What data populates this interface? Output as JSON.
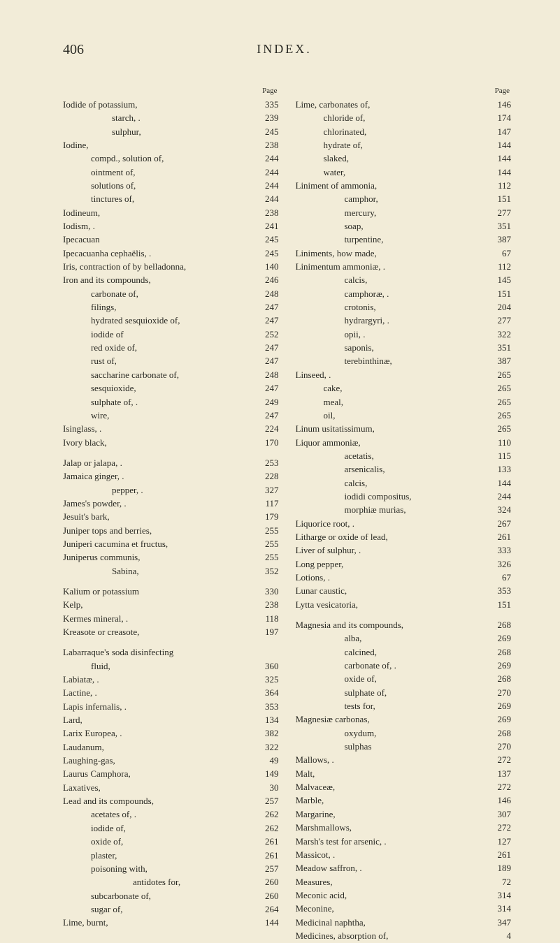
{
  "header": {
    "page_number": "406",
    "title": "INDEX."
  },
  "column_heading": "Page",
  "left": [
    {
      "text": "Iodide of potassium,",
      "page": "335",
      "indent": 0
    },
    {
      "text": "starch, .",
      "page": "239",
      "indent": 2
    },
    {
      "text": "sulphur,",
      "page": "245",
      "indent": 2
    },
    {
      "text": "Iodine,",
      "page": "238",
      "indent": 0
    },
    {
      "text": "compd., solution of,",
      "page": "244",
      "indent": 1
    },
    {
      "text": "ointment of,",
      "page": "244",
      "indent": 1
    },
    {
      "text": "solutions of,",
      "page": "244",
      "indent": 1
    },
    {
      "text": "tinctures of,",
      "page": "244",
      "indent": 1
    },
    {
      "text": "Iodineum,",
      "page": "238",
      "indent": 0
    },
    {
      "text": "Iodism, .",
      "page": "241",
      "indent": 0
    },
    {
      "text": "Ipecacuan",
      "page": "245",
      "indent": 0
    },
    {
      "text": "Ipecacuanha cephaëlis, .",
      "page": "245",
      "indent": 0
    },
    {
      "text": "Iris, contraction of by belladonna,",
      "page": "140",
      "indent": 0
    },
    {
      "text": "Iron and its compounds,",
      "page": "246",
      "indent": 0
    },
    {
      "text": "carbonate of,",
      "page": "248",
      "indent": 1
    },
    {
      "text": "filings,",
      "page": "247",
      "indent": 1
    },
    {
      "text": "hydrated sesquioxide of,",
      "page": "247",
      "indent": 1
    },
    {
      "text": "iodide of",
      "page": "252",
      "indent": 1
    },
    {
      "text": "red oxide of,",
      "page": "247",
      "indent": 1
    },
    {
      "text": "rust of,",
      "page": "247",
      "indent": 1
    },
    {
      "text": "saccharine carbonate of,",
      "page": "248",
      "indent": 1
    },
    {
      "text": "sesquioxide,",
      "page": "247",
      "indent": 1
    },
    {
      "text": "sulphate of, .",
      "page": "249",
      "indent": 1
    },
    {
      "text": "wire,",
      "page": "247",
      "indent": 1
    },
    {
      "text": "Isinglass, .",
      "page": "224",
      "indent": 0
    },
    {
      "text": "Ivory black,",
      "page": "170",
      "indent": 0
    },
    {
      "text": "",
      "page": "",
      "indent": 0,
      "gap": true
    },
    {
      "text": "Jalap or jalapa, .",
      "page": "253",
      "indent": 0
    },
    {
      "text": "Jamaica ginger, .",
      "page": "228",
      "indent": 0
    },
    {
      "text": "pepper, .",
      "page": "327",
      "indent": 2
    },
    {
      "text": "James's powder, .",
      "page": "117",
      "indent": 0
    },
    {
      "text": "Jesuit's bark,",
      "page": "179",
      "indent": 0
    },
    {
      "text": "Juniper tops and berries,",
      "page": "255",
      "indent": 0
    },
    {
      "text": "Juniperi cacumina et fructus,",
      "page": "255",
      "indent": 0
    },
    {
      "text": "Juniperus communis,",
      "page": "255",
      "indent": 0
    },
    {
      "text": "Sabina,",
      "page": "352",
      "indent": 2
    },
    {
      "text": "",
      "page": "",
      "indent": 0,
      "gap": true
    },
    {
      "text": "Kalium or potassium",
      "page": "330",
      "indent": 0
    },
    {
      "text": "Kelp,",
      "page": "238",
      "indent": 0
    },
    {
      "text": "Kermes mineral, .",
      "page": "118",
      "indent": 0
    },
    {
      "text": "Kreasote or creasote,",
      "page": "197",
      "indent": 0
    },
    {
      "text": "",
      "page": "",
      "indent": 0,
      "gap": true
    },
    {
      "text": "Labarraque's soda disinfecting",
      "page": "",
      "indent": 0
    },
    {
      "text": "fluid,",
      "page": "360",
      "indent": 1
    },
    {
      "text": "Labiatæ, .",
      "page": "325",
      "indent": 0
    },
    {
      "text": "Lactine, .",
      "page": "364",
      "indent": 0
    },
    {
      "text": "Lapis infernalis, .",
      "page": "353",
      "indent": 0
    },
    {
      "text": "Lard,",
      "page": "134",
      "indent": 0
    },
    {
      "text": "Larix Europea, .",
      "page": "382",
      "indent": 0
    },
    {
      "text": "Laudanum,",
      "page": "322",
      "indent": 0
    },
    {
      "text": "Laughing-gas,",
      "page": "49",
      "indent": 0
    },
    {
      "text": "Laurus Camphora,",
      "page": "149",
      "indent": 0
    },
    {
      "text": "Laxatives,",
      "page": "30",
      "indent": 0
    },
    {
      "text": "Lead and its compounds,",
      "page": "257",
      "indent": 0
    },
    {
      "text": "acetates of, .",
      "page": "262",
      "indent": 1
    },
    {
      "text": "iodide of,",
      "page": "262",
      "indent": 1
    },
    {
      "text": "oxide of,",
      "page": "261",
      "indent": 1
    },
    {
      "text": "plaster,",
      "page": "261",
      "indent": 1
    },
    {
      "text": "poisoning with,",
      "page": "257",
      "indent": 1
    },
    {
      "text": "antidotes for,",
      "page": "260",
      "indent": 3
    },
    {
      "text": "subcarbonate of,",
      "page": "260",
      "indent": 1
    },
    {
      "text": "sugar of,",
      "page": "264",
      "indent": 1
    },
    {
      "text": "Lime, burnt,",
      "page": "144",
      "indent": 0
    }
  ],
  "right": [
    {
      "text": "Lime, carbonates of,",
      "page": "146",
      "indent": 0
    },
    {
      "text": "chloride of,",
      "page": "174",
      "indent": 1
    },
    {
      "text": "chlorinated,",
      "page": "147",
      "indent": 1
    },
    {
      "text": "hydrate of,",
      "page": "144",
      "indent": 1
    },
    {
      "text": "slaked,",
      "page": "144",
      "indent": 1
    },
    {
      "text": "water,",
      "page": "144",
      "indent": 1
    },
    {
      "text": "Liniment of ammonia,",
      "page": "112",
      "indent": 0
    },
    {
      "text": "camphor,",
      "page": "151",
      "indent": 2
    },
    {
      "text": "mercury,",
      "page": "277",
      "indent": 2
    },
    {
      "text": "soap,",
      "page": "351",
      "indent": 2
    },
    {
      "text": "turpentine,",
      "page": "387",
      "indent": 2
    },
    {
      "text": "Liniments, how made,",
      "page": "67",
      "indent": 0
    },
    {
      "text": "Linimentum ammoniæ, .",
      "page": "112",
      "indent": 0
    },
    {
      "text": "calcis,",
      "page": "145",
      "indent": 2
    },
    {
      "text": "camphoræ, .",
      "page": "151",
      "indent": 2
    },
    {
      "text": "crotonis,",
      "page": "204",
      "indent": 2
    },
    {
      "text": "hydrargyri, .",
      "page": "277",
      "indent": 2
    },
    {
      "text": "opii, .",
      "page": "322",
      "indent": 2
    },
    {
      "text": "saponis,",
      "page": "351",
      "indent": 2
    },
    {
      "text": "terebinthinæ,",
      "page": "387",
      "indent": 2
    },
    {
      "text": "Linseed, .",
      "page": "265",
      "indent": 0
    },
    {
      "text": "cake,",
      "page": "265",
      "indent": 1
    },
    {
      "text": "meal,",
      "page": "265",
      "indent": 1
    },
    {
      "text": "oil,",
      "page": "265",
      "indent": 1
    },
    {
      "text": "Linum usitatissimum,",
      "page": "265",
      "indent": 0
    },
    {
      "text": "Liquor ammoniæ,",
      "page": "110",
      "indent": 0
    },
    {
      "text": "acetatis,",
      "page": "115",
      "indent": 2
    },
    {
      "text": "arsenicalis,",
      "page": "133",
      "indent": 2
    },
    {
      "text": "calcis,",
      "page": "144",
      "indent": 2
    },
    {
      "text": "iodidi compositus,",
      "page": "244",
      "indent": 2
    },
    {
      "text": "morphiæ murias,",
      "page": "324",
      "indent": 2
    },
    {
      "text": "Liquorice root, .",
      "page": "267",
      "indent": 0
    },
    {
      "text": "Litharge or oxide of lead,",
      "page": "261",
      "indent": 0
    },
    {
      "text": "Liver of sulphur, .",
      "page": "333",
      "indent": 0
    },
    {
      "text": "Long pepper,",
      "page": "326",
      "indent": 0
    },
    {
      "text": "Lotions, .",
      "page": "67",
      "indent": 0
    },
    {
      "text": "Lunar caustic,",
      "page": "353",
      "indent": 0
    },
    {
      "text": "Lytta vesicatoria,",
      "page": "151",
      "indent": 0
    },
    {
      "text": "",
      "page": "",
      "indent": 0,
      "gap": true
    },
    {
      "text": "Magnesia and its compounds,",
      "page": "268",
      "indent": 0
    },
    {
      "text": "alba,",
      "page": "269",
      "indent": 2
    },
    {
      "text": "calcined,",
      "page": "268",
      "indent": 2
    },
    {
      "text": "carbonate of, .",
      "page": "269",
      "indent": 2
    },
    {
      "text": "oxide of,",
      "page": "268",
      "indent": 2
    },
    {
      "text": "sulphate of,",
      "page": "270",
      "indent": 2
    },
    {
      "text": "tests for,",
      "page": "269",
      "indent": 2
    },
    {
      "text": "Magnesiæ carbonas,",
      "page": "269",
      "indent": 0
    },
    {
      "text": "oxydum,",
      "page": "268",
      "indent": 2
    },
    {
      "text": "sulphas",
      "page": "270",
      "indent": 2
    },
    {
      "text": "Mallows, .",
      "page": "272",
      "indent": 0
    },
    {
      "text": "Malt,",
      "page": "137",
      "indent": 0
    },
    {
      "text": "Malvaceæ,",
      "page": "272",
      "indent": 0
    },
    {
      "text": "Marble,",
      "page": "146",
      "indent": 0
    },
    {
      "text": "Margarine,",
      "page": "307",
      "indent": 0
    },
    {
      "text": "Marshmallows,",
      "page": "272",
      "indent": 0
    },
    {
      "text": "Marsh's test for arsenic, .",
      "page": "127",
      "indent": 0
    },
    {
      "text": "Massicot, .",
      "page": "261",
      "indent": 0
    },
    {
      "text": "Meadow saffron, .",
      "page": "189",
      "indent": 0
    },
    {
      "text": "Measures,",
      "page": "72",
      "indent": 0
    },
    {
      "text": "Meconic acid,",
      "page": "314",
      "indent": 0
    },
    {
      "text": "Meconine,",
      "page": "314",
      "indent": 0
    },
    {
      "text": "Medicinal naphtha,",
      "page": "347",
      "indent": 0
    },
    {
      "text": "Medicines, absorption of,",
      "page": "4",
      "indent": 0
    }
  ]
}
